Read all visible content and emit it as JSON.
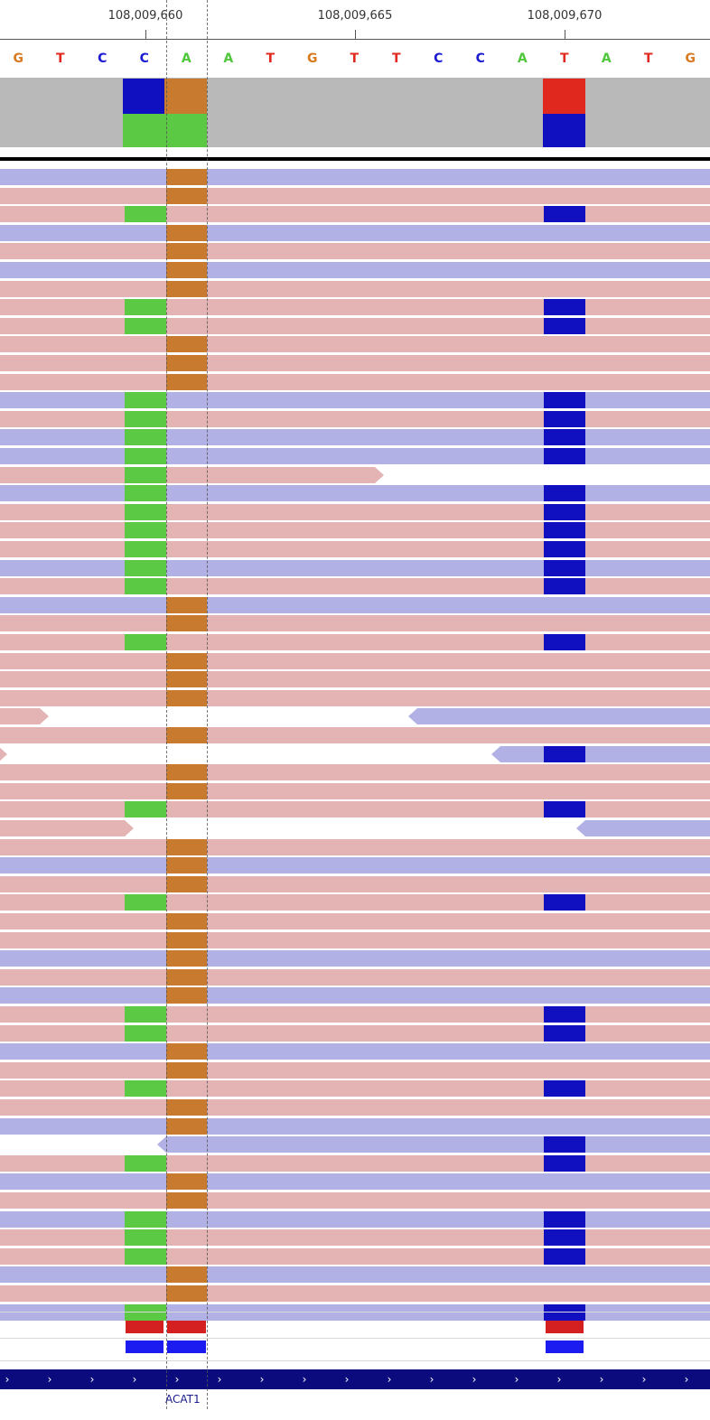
{
  "ruler": {
    "ticks": [
      {
        "label": "108,009,660",
        "x": 161
      },
      {
        "label": "108,009,665",
        "x": 393
      },
      {
        "label": "108,009,670",
        "x": 625
      }
    ]
  },
  "reference": {
    "bases": [
      "G",
      "T",
      "C",
      "C",
      "A",
      "A",
      "T",
      "G",
      "T",
      "T",
      "C",
      "C",
      "A",
      "T",
      "A",
      "T",
      "G"
    ],
    "colors": {
      "A": "#4fc73b",
      "C": "#1b1bd1",
      "G": "#d97a20",
      "T": "#e0281e"
    }
  },
  "colors": {
    "fwd_read": "#e4b4b4",
    "rev_read": "#b1b1e6",
    "mm_A": "#c87a2e",
    "mm_G": "#5cc944",
    "mm_C": "#1010c0",
    "mm_T": "#e0281e",
    "coverage": "#b9b9b9"
  },
  "gene": {
    "name": "ACAT1",
    "strand": "+"
  }
}
